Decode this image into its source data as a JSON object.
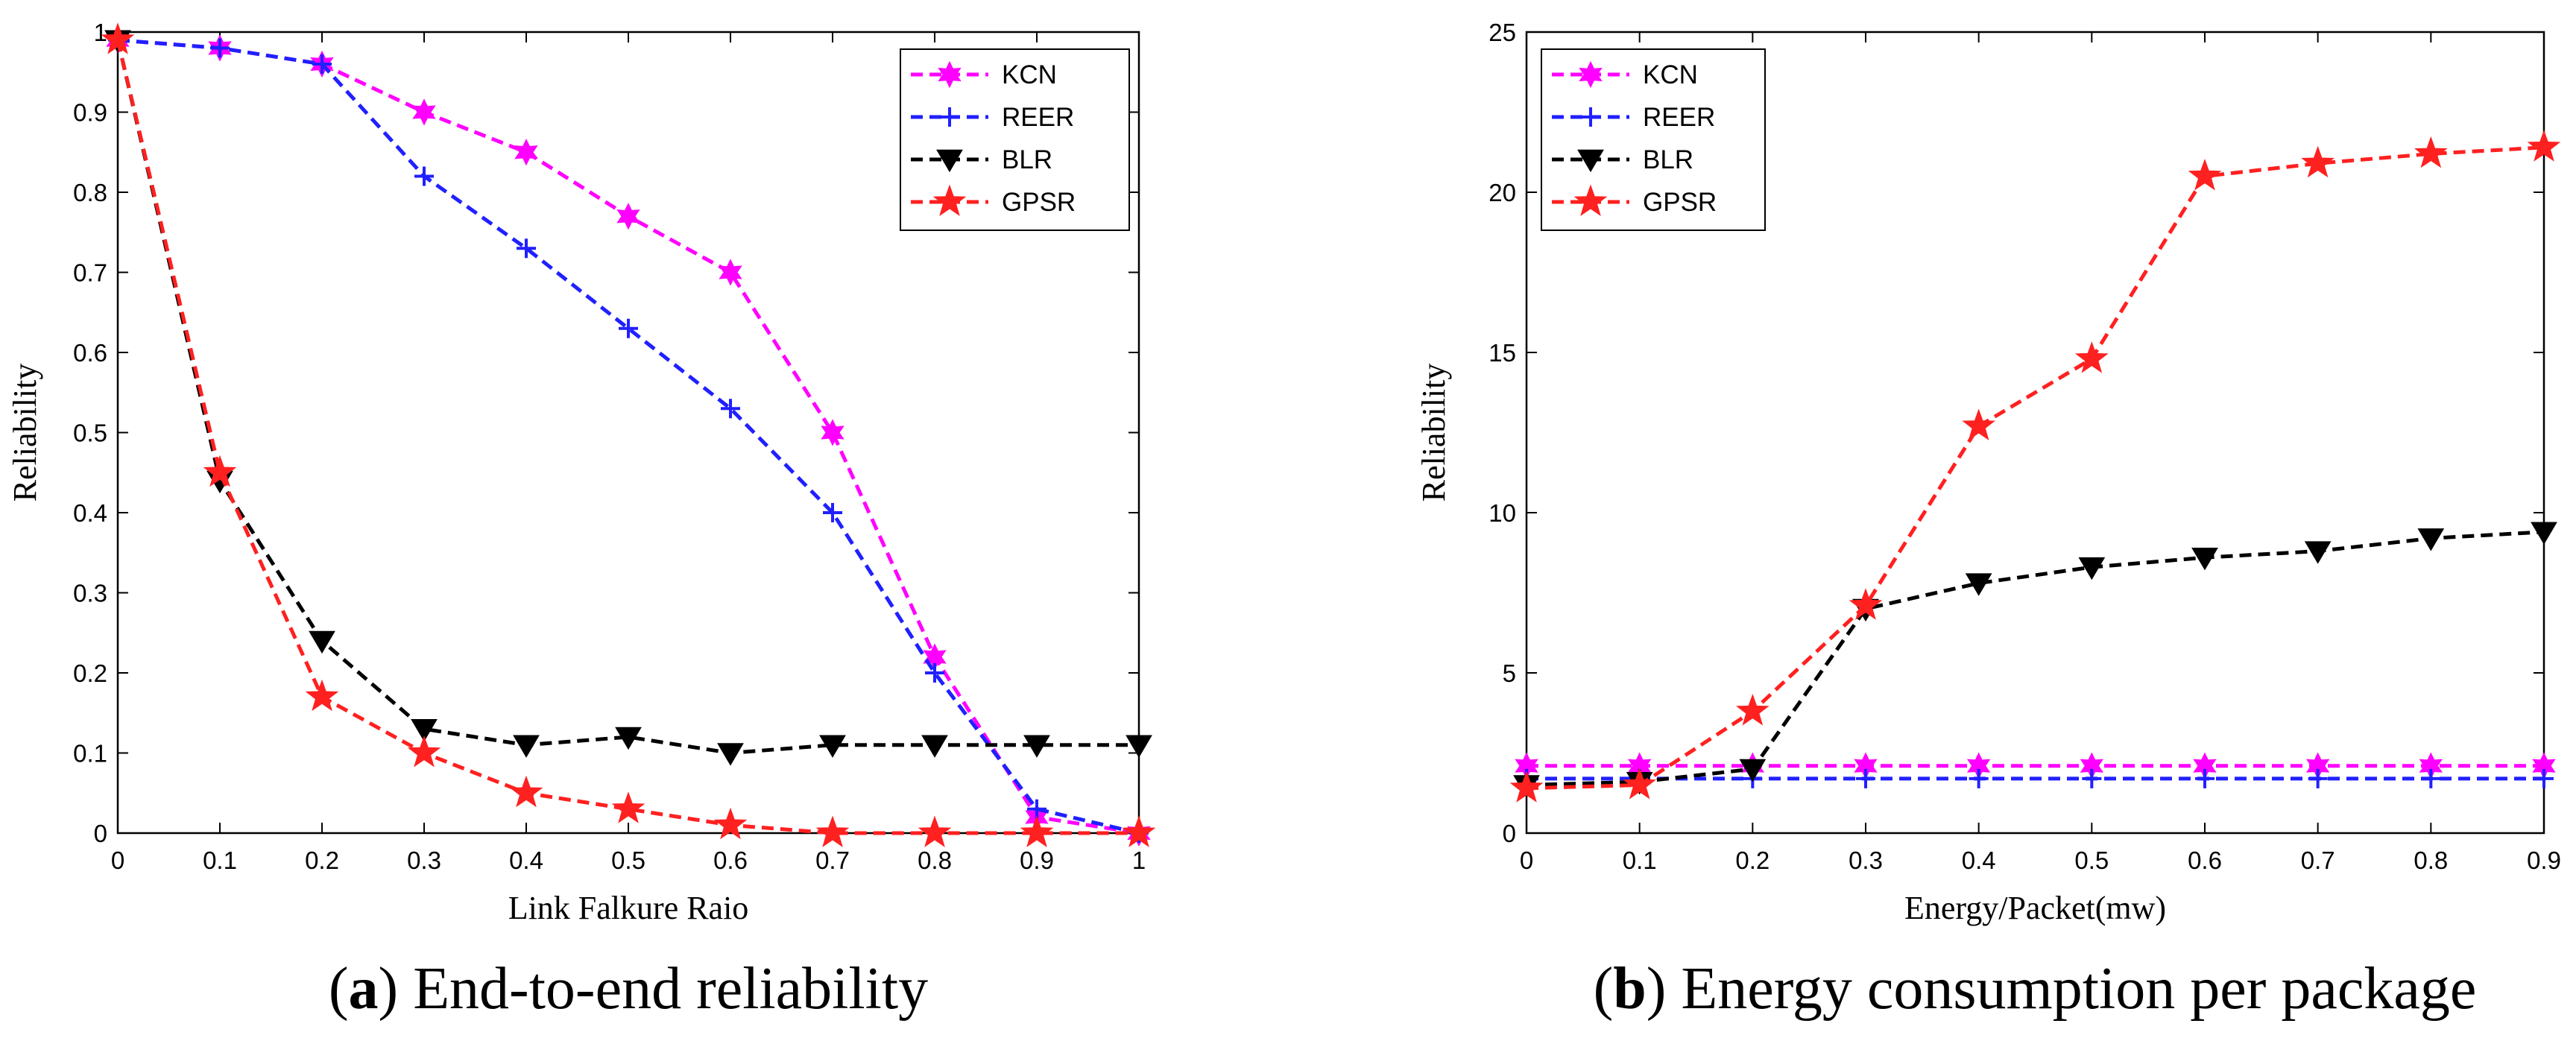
{
  "chart_data": [
    {
      "type": "line",
      "caption_letter": "a",
      "caption_open": "(",
      "caption_close": ")",
      "caption_text": " End-to-end reliability",
      "xlabel": "Link Falkure Raio",
      "ylabel": "Reliability",
      "xlim": [
        0,
        1
      ],
      "ylim": [
        0,
        1
      ],
      "xticks": [
        0,
        0.1,
        0.2,
        0.3,
        0.4,
        0.5,
        0.6,
        0.7,
        0.8,
        0.9,
        1
      ],
      "xtick_labels": [
        "0",
        "0.1",
        "0.2",
        "0.3",
        "0.4",
        "0.5",
        "0.6",
        "0.7",
        "0.8",
        "0.9",
        "1"
      ],
      "yticks": [
        0,
        0.1,
        0.2,
        0.3,
        0.4,
        0.5,
        0.6,
        0.7,
        0.8,
        0.9,
        1
      ],
      "ytick_labels": [
        "0",
        "0.1",
        "0.2",
        "0.3",
        "0.4",
        "0.5",
        "0.6",
        "0.7",
        "0.8",
        "0.9",
        "1"
      ],
      "legend_position": "top-right",
      "grid": false,
      "series": [
        {
          "name": "KCN",
          "color": "#ff00ff",
          "marker": "hexagram",
          "x": [
            0,
            0.1,
            0.2,
            0.3,
            0.4,
            0.5,
            0.6,
            0.7,
            0.8,
            0.9,
            1
          ],
          "y": [
            0.99,
            0.98,
            0.96,
            0.9,
            0.85,
            0.77,
            0.7,
            0.5,
            0.22,
            0.02,
            0.0
          ]
        },
        {
          "name": "REER",
          "color": "#2020ff",
          "marker": "plus",
          "x": [
            0,
            0.1,
            0.2,
            0.3,
            0.4,
            0.5,
            0.6,
            0.7,
            0.8,
            0.9,
            1
          ],
          "y": [
            0.99,
            0.98,
            0.96,
            0.82,
            0.73,
            0.63,
            0.53,
            0.4,
            0.2,
            0.03,
            0.0
          ]
        },
        {
          "name": "BLR",
          "color": "#000000",
          "marker": "triangle-down",
          "x": [
            0,
            0.1,
            0.2,
            0.3,
            0.4,
            0.5,
            0.6,
            0.7,
            0.8,
            0.9,
            1
          ],
          "y": [
            0.99,
            0.44,
            0.24,
            0.13,
            0.11,
            0.12,
            0.1,
            0.11,
            0.11,
            0.11,
            0.11
          ]
        },
        {
          "name": "GPSR",
          "color": "#ff2020",
          "marker": "pentagram",
          "x": [
            0,
            0.1,
            0.2,
            0.3,
            0.4,
            0.5,
            0.6,
            0.7,
            0.8,
            0.9,
            1
          ],
          "y": [
            0.99,
            0.45,
            0.17,
            0.1,
            0.05,
            0.03,
            0.01,
            0.0,
            0.0,
            0.0,
            0.0
          ]
        }
      ]
    },
    {
      "type": "line",
      "caption_letter": "b",
      "caption_open": "(",
      "caption_close": ")",
      "caption_text": " Energy consumption per package",
      "xlabel": "Energy/Packet(mw)",
      "ylabel": "Reliability",
      "xlim": [
        0,
        0.9
      ],
      "ylim": [
        0,
        25
      ],
      "xticks": [
        0,
        0.1,
        0.2,
        0.3,
        0.4,
        0.5,
        0.6,
        0.7,
        0.8,
        0.9
      ],
      "xtick_labels": [
        "0",
        "0.1",
        "0.2",
        "0.3",
        "0.4",
        "0.5",
        "0.6",
        "0.7",
        "0.8",
        "0.9"
      ],
      "yticks": [
        0,
        5,
        10,
        15,
        20,
        25
      ],
      "ytick_labels": [
        "0",
        "5",
        "10",
        "15",
        "20",
        "25"
      ],
      "legend_position": "top-left",
      "grid": false,
      "series": [
        {
          "name": "KCN",
          "color": "#ff00ff",
          "marker": "hexagram",
          "x": [
            0,
            0.1,
            0.2,
            0.3,
            0.4,
            0.5,
            0.6,
            0.7,
            0.8,
            0.9
          ],
          "y": [
            2.1,
            2.1,
            2.1,
            2.1,
            2.1,
            2.1,
            2.1,
            2.1,
            2.1,
            2.1
          ]
        },
        {
          "name": "REER",
          "color": "#2020ff",
          "marker": "plus",
          "x": [
            0,
            0.1,
            0.2,
            0.3,
            0.4,
            0.5,
            0.6,
            0.7,
            0.8,
            0.9
          ],
          "y": [
            1.7,
            1.7,
            1.7,
            1.7,
            1.7,
            1.7,
            1.7,
            1.7,
            1.7,
            1.7
          ]
        },
        {
          "name": "BLR",
          "color": "#000000",
          "marker": "triangle-down",
          "x": [
            0,
            0.1,
            0.2,
            0.3,
            0.4,
            0.5,
            0.6,
            0.7,
            0.8,
            0.9
          ],
          "y": [
            1.5,
            1.6,
            2.0,
            7.0,
            7.8,
            8.3,
            8.6,
            8.8,
            9.2,
            9.4
          ]
        },
        {
          "name": "GPSR",
          "color": "#ff2020",
          "marker": "pentagram",
          "x": [
            0,
            0.1,
            0.2,
            0.3,
            0.4,
            0.5,
            0.6,
            0.7,
            0.8,
            0.9
          ],
          "y": [
            1.4,
            1.5,
            3.8,
            7.1,
            12.7,
            14.8,
            20.5,
            20.9,
            21.2,
            21.4
          ]
        }
      ]
    }
  ]
}
